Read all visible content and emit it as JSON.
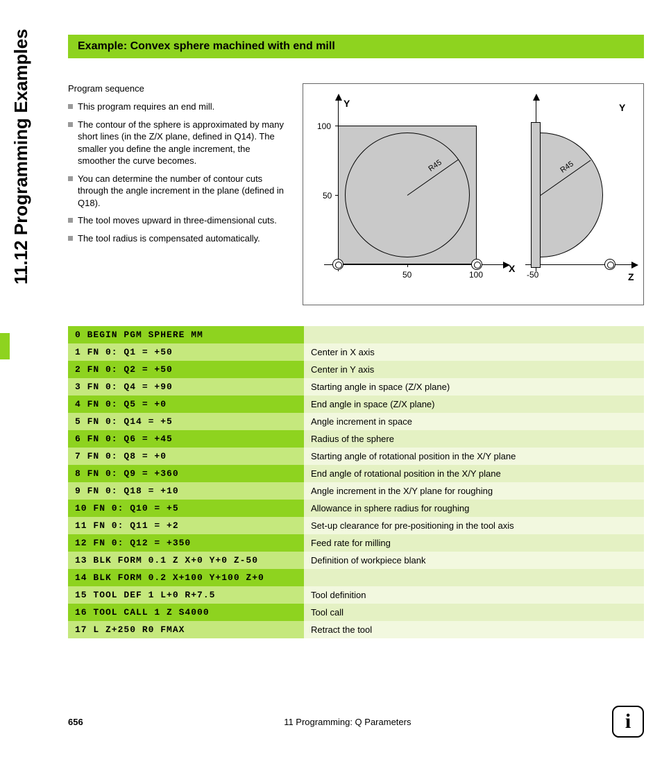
{
  "side_title": "11.12 Programming Examples",
  "title": "Example: Convex sphere machined with end mill",
  "seq_heading": "Program sequence",
  "bullets": [
    "This program requires an end mill.",
    "The contour of the sphere is approximated by many short lines (in the Z/X plane, defined in Q14). The smaller you define the angle increment, the smoother the curve becomes.",
    "You can determine the number of contour cuts through the angle increment in the plane (defined in Q18).",
    "The tool moves upward in three-dimensional cuts.",
    "The tool radius is compensated automatically."
  ],
  "diagram": {
    "y_label": "Y",
    "x_label": "X",
    "z_label": "Z",
    "y_ticks": [
      "100",
      "50"
    ],
    "x_ticks": [
      "50",
      "100"
    ],
    "z_tick": "-50",
    "radius_label": "R45"
  },
  "rows": [
    {
      "code": "0 BEGIN PGM SPHERE MM",
      "desc": ""
    },
    {
      "code": "1 FN 0: Q1 = +50",
      "desc": "Center in X axis"
    },
    {
      "code": "2 FN 0: Q2 = +50",
      "desc": "Center in Y axis"
    },
    {
      "code": "3 FN 0: Q4 = +90",
      "desc": "Starting angle in space (Z/X plane)"
    },
    {
      "code": "4 FN 0: Q5 = +0",
      "desc": "End angle in space (Z/X plane)"
    },
    {
      "code": "5 FN 0: Q14 = +5",
      "desc": "Angle increment in space"
    },
    {
      "code": "6 FN 0: Q6 = +45",
      "desc": "Radius of the sphere"
    },
    {
      "code": "7 FN 0: Q8 = +0",
      "desc": "Starting angle of rotational position in the X/Y plane"
    },
    {
      "code": "8 FN 0: Q9 = +360",
      "desc": "End angle of rotational position in the X/Y plane"
    },
    {
      "code": "9 FN 0: Q18 = +10",
      "desc": "Angle increment in the X/Y plane for roughing"
    },
    {
      "code": "10 FN 0: Q10 = +5",
      "desc": "Allowance in sphere radius for roughing"
    },
    {
      "code": "11 FN 0: Q11 = +2",
      "desc": "Set-up clearance for pre-positioning in the tool axis"
    },
    {
      "code": "12 FN 0: Q12 = +350",
      "desc": "Feed rate for milling"
    },
    {
      "code": "13 BLK FORM 0.1 Z X+0 Y+0 Z-50",
      "desc": "Definition of workpiece blank"
    },
    {
      "code": "14 BLK FORM 0.2 X+100 Y+100 Z+0",
      "desc": ""
    },
    {
      "code": "15 TOOL DEF 1 L+0 R+7.5",
      "desc": "Tool definition"
    },
    {
      "code": "16 TOOL CALL 1 Z S4000",
      "desc": "Tool call"
    },
    {
      "code": "17 L Z+250 R0 FMAX",
      "desc": "Retract the tool"
    }
  ],
  "footer": {
    "page": "656",
    "chapter": "11 Programming: Q Parameters",
    "info_glyph": "i"
  }
}
